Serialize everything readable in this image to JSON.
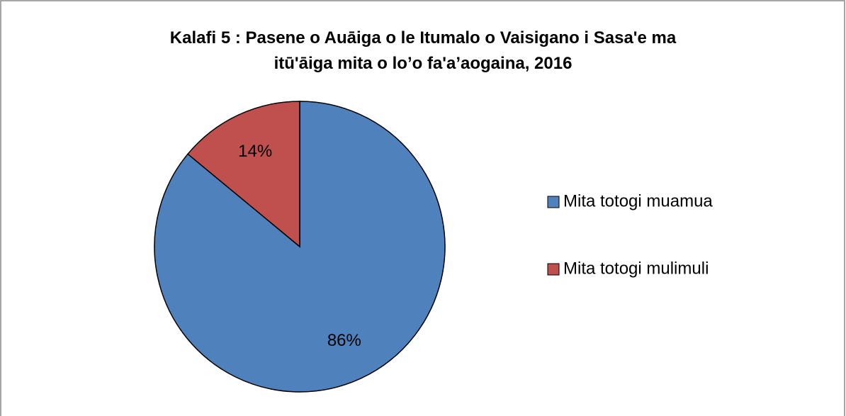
{
  "chart_data": {
    "type": "pie",
    "title": "Kalafi 5 : Pasene o Auāiga o le Itumalo o Vaisigano i Sasa'e ma itū'āiga mita o lo’o fa'a’aogaina, 2016",
    "categories": [
      "Mita totogi muamua",
      "Mita totogi mulimuli"
    ],
    "values": [
      86,
      14
    ],
    "value_labels": [
      "86%",
      "14%"
    ],
    "colors": [
      "#4f81bd",
      "#c0504d"
    ],
    "legend": "right"
  }
}
